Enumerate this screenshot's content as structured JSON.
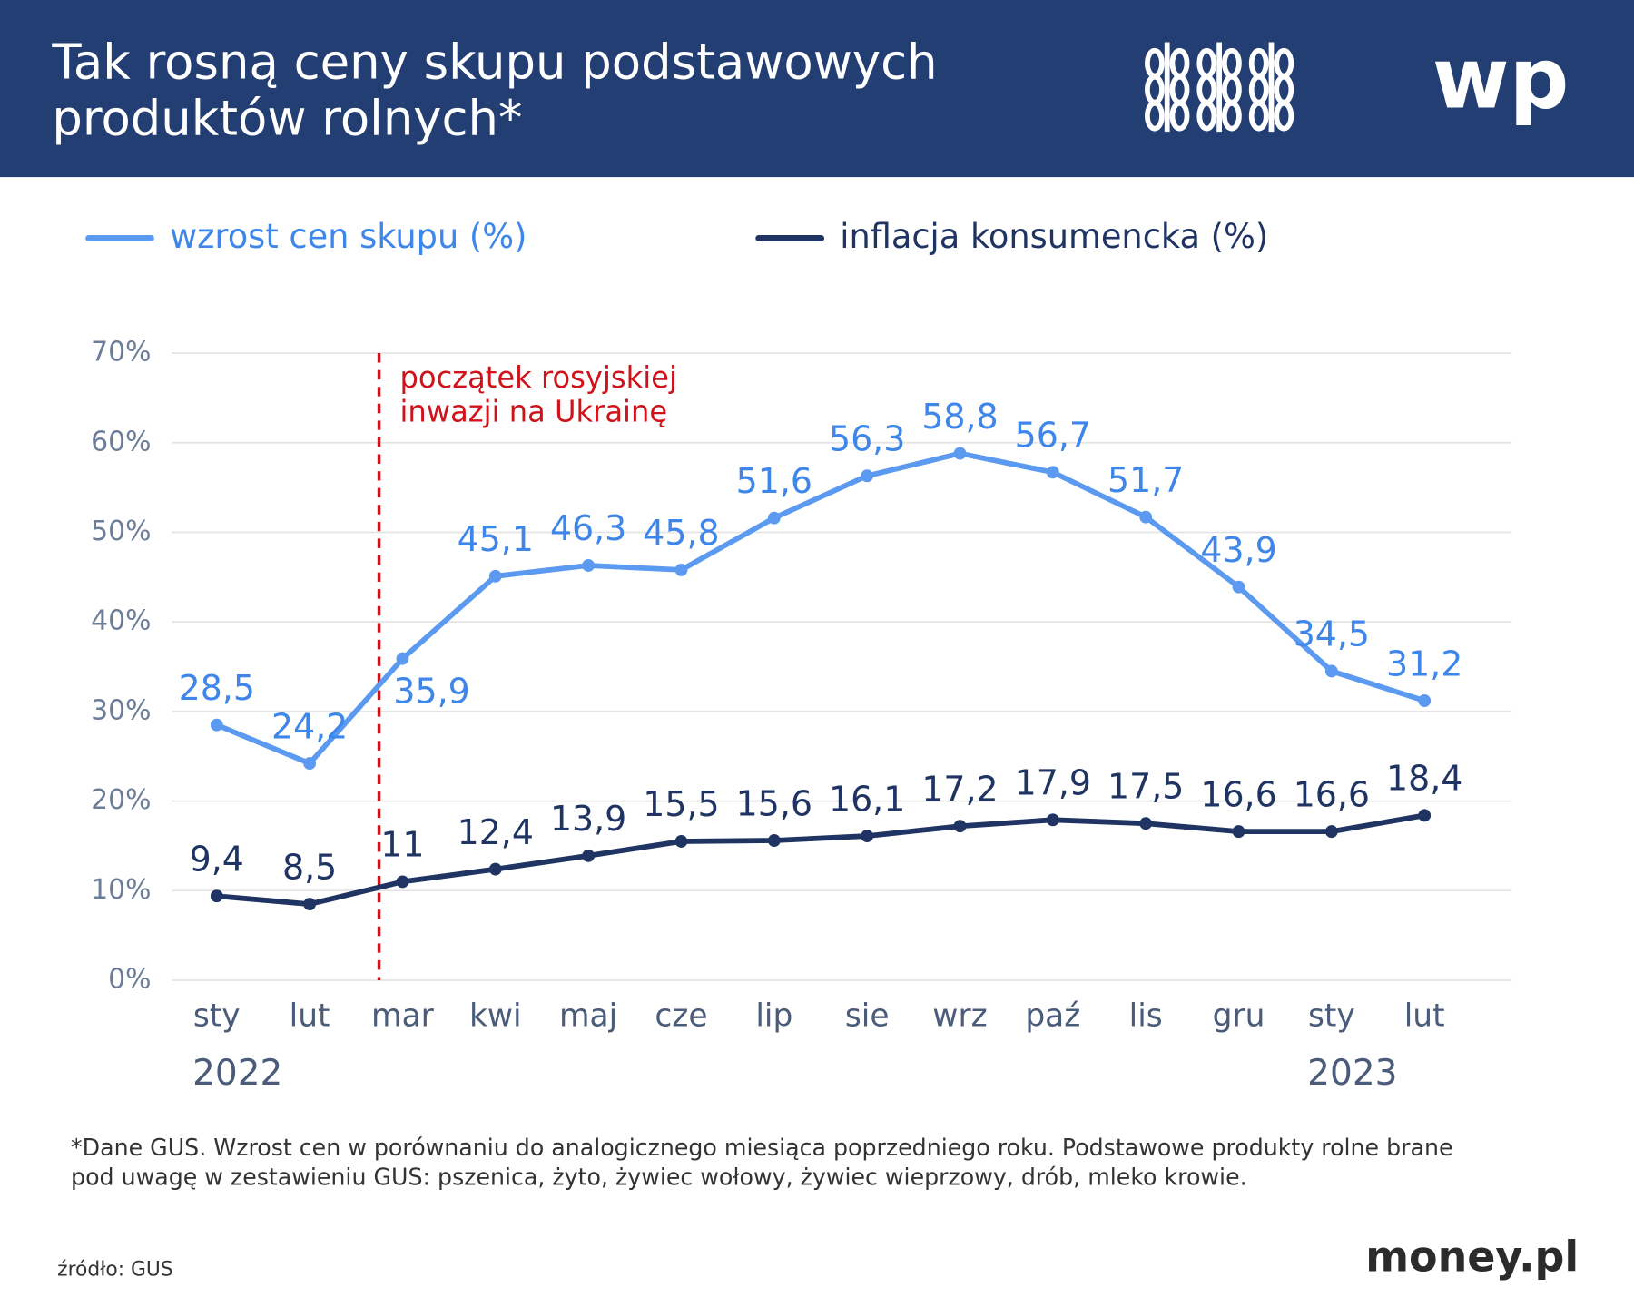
{
  "header": {
    "title": [
      "Tak rosną ceny skupu podstawowych",
      "produktów rolnych*"
    ]
  },
  "chart_data": {
    "type": "line",
    "categories": [
      "sty",
      "lut",
      "mar",
      "kwi",
      "maj",
      "cze",
      "lip",
      "sie",
      "wrz",
      "paź",
      "lis",
      "gru",
      "sty",
      "lut"
    ],
    "years": [
      "2022",
      null,
      null,
      null,
      null,
      null,
      null,
      null,
      null,
      null,
      null,
      null,
      "2023",
      null
    ],
    "series": [
      {
        "name": "wzrost cen skupu (%)",
        "color": "#5b9af0",
        "values": [
          28.5,
          24.2,
          35.9,
          45.1,
          46.3,
          45.8,
          51.6,
          56.3,
          58.8,
          56.7,
          51.7,
          43.9,
          34.5,
          31.2
        ],
        "value_labels": [
          "28,5",
          "24,2",
          "35,9",
          "45,1",
          "46,3",
          "45,8",
          "51,6",
          "56,3",
          "58,8",
          "56,7",
          "51,7",
          "43,9",
          "34,5",
          "31,2"
        ]
      },
      {
        "name": "inflacja konsumencka (%)",
        "color": "#1f3462",
        "values": [
          9.4,
          8.5,
          11,
          12.4,
          13.9,
          15.5,
          15.6,
          16.1,
          17.2,
          17.9,
          17.5,
          16.6,
          16.6,
          18.4
        ],
        "value_labels": [
          "9,4",
          "8,5",
          "11",
          "12,4",
          "13,9",
          "15,5",
          "15,6",
          "16,1",
          "17,2",
          "17,9",
          "17,5",
          "16,6",
          "16,6",
          "18,4"
        ]
      }
    ],
    "ylim": [
      0,
      70
    ],
    "yticks": [
      {
        "value": 0,
        "label": "0%"
      },
      {
        "value": 10,
        "label": "10%"
      },
      {
        "value": 20,
        "label": "20%"
      },
      {
        "value": 30,
        "label": "30%"
      },
      {
        "value": 40,
        "label": "40%"
      },
      {
        "value": 50,
        "label": "50%"
      },
      {
        "value": 60,
        "label": "60%"
      },
      {
        "value": 70,
        "label": "70%"
      }
    ],
    "grid": true,
    "annotation": {
      "lines": [
        "początek rosyjskiej",
        "inwazji na Ukrainę"
      ],
      "color": "#d0121b"
    }
  },
  "footnote": [
    "*Dane GUS. Wzrost cen w porównaniu do analogicznego miesiąca poprzedniego roku. Podstawowe produkty rolne brane",
    "pod uwagę w zestawieniu GUS: pszenica, żyto, żywiec wołowy, żywiec wieprzowy, drób, mleko krowie."
  ],
  "source": "źródło: GUS",
  "brand": "money.pl",
  "logo": "wp"
}
